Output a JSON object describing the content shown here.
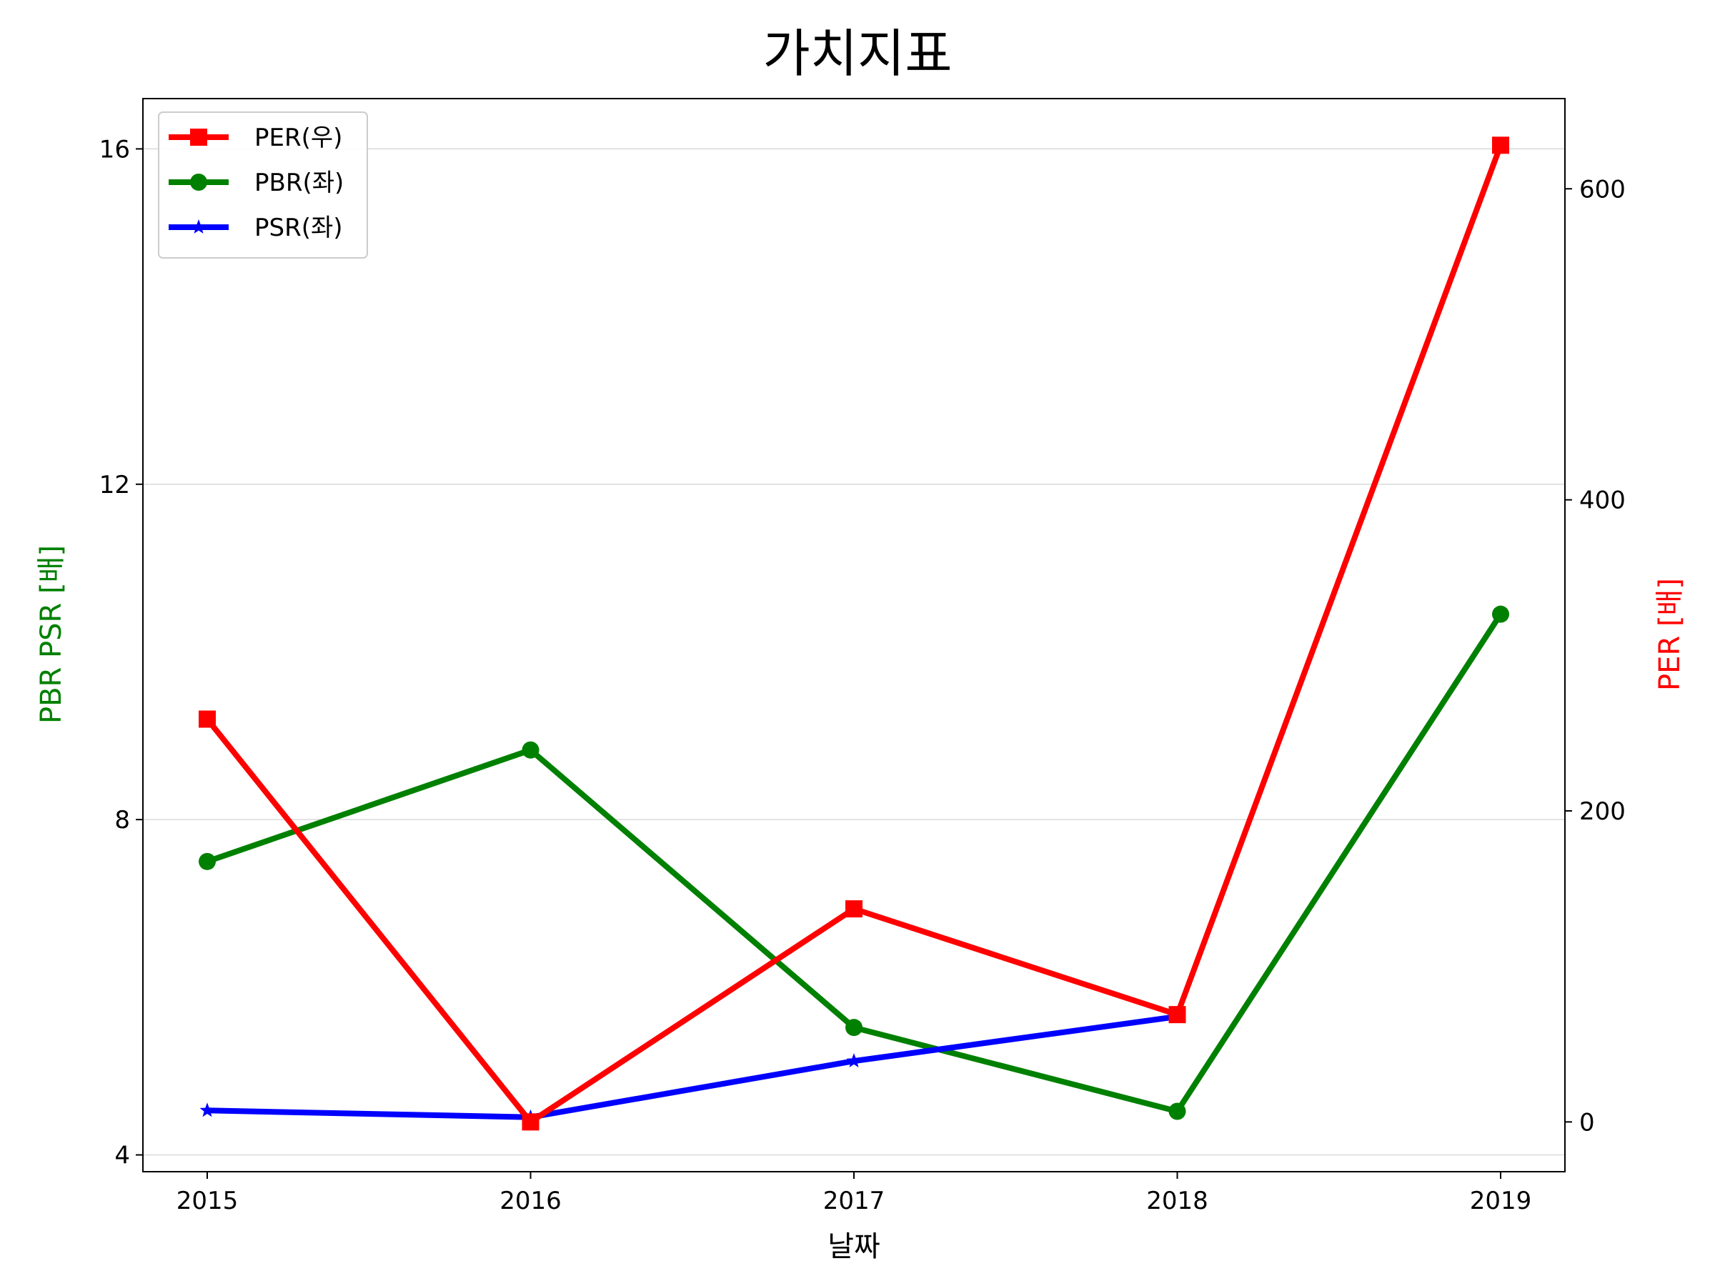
{
  "chart_data": {
    "type": "line",
    "title": "가치지표",
    "xlabel": "날짜",
    "ylabel_left": "PBR PSR [배]",
    "ylabel_right": "PER [배]",
    "categories": [
      "2015",
      "2016",
      "2017",
      "2018",
      "2019"
    ],
    "left_axis": {
      "ylim": [
        3.8,
        16.6
      ],
      "ticks": [
        "4",
        "8",
        "12",
        "16"
      ],
      "grid": true
    },
    "right_axis": {
      "ylim": [
        -32,
        658
      ],
      "ticks": [
        "0",
        "200",
        "400",
        "600"
      ]
    },
    "series": [
      {
        "name": "PER(우)",
        "axis": "right",
        "color": "#ff0000",
        "marker": "square",
        "values": [
          259,
          0,
          137,
          69,
          628
        ]
      },
      {
        "name": "PBR(좌)",
        "axis": "left",
        "color": "#008000",
        "marker": "circle",
        "values": [
          7.5,
          8.83,
          5.52,
          4.52,
          10.45
        ]
      },
      {
        "name": "PSR(좌)",
        "axis": "left",
        "color": "#0000ff",
        "marker": "star",
        "values": [
          4.53,
          4.45,
          5.12,
          5.65,
          null
        ]
      }
    ],
    "legend_position": "upper-left",
    "left_axis_color": "#008000",
    "right_axis_color": "#ff0000"
  }
}
